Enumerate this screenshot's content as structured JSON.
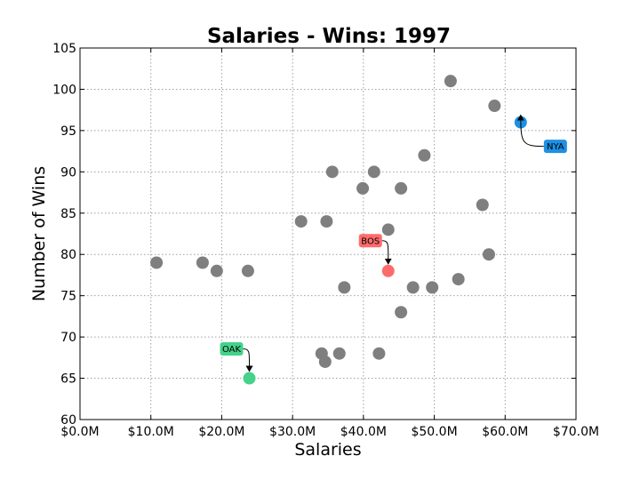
{
  "chart_data": {
    "type": "scatter",
    "title": "Salaries - Wins: 1997",
    "xlabel": "Salaries",
    "ylabel": "Number of Wins",
    "xlim": [
      0,
      70
    ],
    "ylim": [
      60,
      105
    ],
    "xticks": [
      0,
      10,
      20,
      30,
      40,
      50,
      60,
      70
    ],
    "xtick_labels": [
      "$0.0M",
      "$10.0M",
      "$20.0M",
      "$30.0M",
      "$40.0M",
      "$50.0M",
      "$60.0M",
      "$70.0M"
    ],
    "yticks": [
      60,
      65,
      70,
      75,
      80,
      85,
      90,
      95,
      100,
      105
    ],
    "ytick_labels": [
      "60",
      "65",
      "70",
      "75",
      "80",
      "85",
      "90",
      "95",
      "100",
      "105"
    ],
    "grid": true,
    "default_color": "#7f7f7f",
    "points": [
      {
        "x": 10.8,
        "y": 79
      },
      {
        "x": 17.3,
        "y": 79
      },
      {
        "x": 19.3,
        "y": 78
      },
      {
        "x": 23.7,
        "y": 78
      },
      {
        "x": 31.2,
        "y": 84
      },
      {
        "x": 35.6,
        "y": 90
      },
      {
        "x": 34.8,
        "y": 84
      },
      {
        "x": 34.1,
        "y": 68
      },
      {
        "x": 34.6,
        "y": 67
      },
      {
        "x": 36.6,
        "y": 68
      },
      {
        "x": 37.3,
        "y": 76
      },
      {
        "x": 39.9,
        "y": 88
      },
      {
        "x": 41.5,
        "y": 90
      },
      {
        "x": 42.2,
        "y": 68
      },
      {
        "x": 43.5,
        "y": 83
      },
      {
        "x": 45.3,
        "y": 88
      },
      {
        "x": 45.3,
        "y": 73
      },
      {
        "x": 47.0,
        "y": 76
      },
      {
        "x": 48.6,
        "y": 92
      },
      {
        "x": 49.7,
        "y": 76
      },
      {
        "x": 52.3,
        "y": 101
      },
      {
        "x": 53.4,
        "y": 77
      },
      {
        "x": 56.8,
        "y": 86
      },
      {
        "x": 57.7,
        "y": 80
      },
      {
        "x": 58.5,
        "y": 98
      },
      {
        "x": 23.9,
        "y": 65,
        "label": "OAK",
        "color": "#45d28a"
      },
      {
        "x": 43.5,
        "y": 78,
        "label": "BOS",
        "color": "#ff6b6b"
      },
      {
        "x": 62.2,
        "y": 96,
        "label": "NYA",
        "color": "#1c90e4"
      }
    ]
  }
}
